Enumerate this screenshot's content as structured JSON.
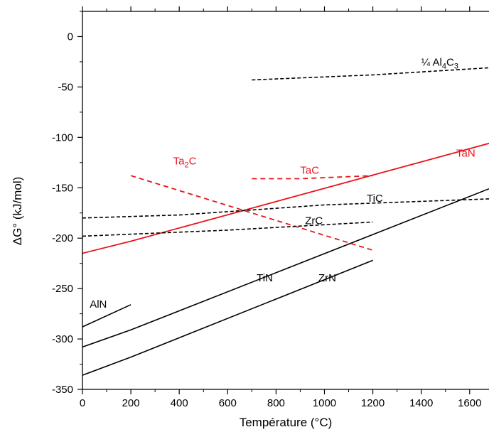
{
  "chart_data": {
    "type": "line",
    "title": "",
    "xlabel": "Température (°C)",
    "ylabel": "ΔG° (kJ/mol)",
    "xlim": [
      0,
      1680
    ],
    "ylim": [
      -350,
      25
    ],
    "x_ticks": [
      0,
      200,
      400,
      600,
      800,
      1000,
      1200,
      1400,
      1600
    ],
    "y_ticks": [
      0,
      -50,
      -100,
      -150,
      -200,
      -250,
      -300,
      -350
    ],
    "grid": false,
    "legend": "none",
    "colors": {
      "red": "#e8141b",
      "black": "#000000"
    },
    "series": [
      {
        "label": "AlN",
        "color": "#000000",
        "dash": "solid",
        "label_at": [
          30,
          -269
        ],
        "label_parts": [
          {
            "t": "AlN"
          }
        ],
        "points": [
          [
            0,
            -288
          ],
          [
            200,
            -266
          ]
        ]
      },
      {
        "label": "TiN",
        "color": "#000000",
        "dash": "solid",
        "label_at": [
          720,
          -243
        ],
        "label_parts": [
          {
            "t": "TiN"
          }
        ],
        "points": [
          [
            0,
            -308
          ],
          [
            200,
            -291
          ],
          [
            1680,
            -151
          ]
        ]
      },
      {
        "label": "ZrN",
        "color": "#000000",
        "dash": "solid",
        "label_at": [
          975,
          -243
        ],
        "label_parts": [
          {
            "t": "ZrN"
          }
        ],
        "points": [
          [
            0,
            -336
          ],
          [
            200,
            -318
          ],
          [
            1200,
            -222
          ]
        ]
      },
      {
        "label": "TaN",
        "color": "#e8141b",
        "dash": "solid",
        "label_at": [
          1545,
          -119
        ],
        "label_parts": [
          {
            "t": "TaN"
          }
        ],
        "points": [
          [
            0,
            -215
          ],
          [
            200,
            -203
          ],
          [
            1680,
            -106
          ]
        ]
      },
      {
        "label": "TaC",
        "color": "#e8141b",
        "dash": "dashed",
        "label_at": [
          900,
          -136
        ],
        "label_parts": [
          {
            "t": "TaC"
          }
        ],
        "points": [
          [
            700,
            -141
          ],
          [
            900,
            -141
          ],
          [
            1200,
            -138
          ]
        ]
      },
      {
        "label": "Ta2C",
        "color": "#e8141b",
        "dash": "dashed",
        "label_at": [
          375,
          -127
        ],
        "label_parts": [
          {
            "t": "Ta"
          },
          {
            "t": "2",
            "sub": true
          },
          {
            "t": "C"
          }
        ],
        "points": [
          [
            200,
            -138
          ],
          [
            1200,
            -212
          ]
        ]
      },
      {
        "label": "TiC",
        "color": "#000000",
        "dash": "dashed",
        "label_at": [
          1175,
          -164
        ],
        "label_parts": [
          {
            "t": "TiC"
          }
        ],
        "points": [
          [
            0,
            -180
          ],
          [
            400,
            -177
          ],
          [
            1000,
            -167
          ],
          [
            1680,
            -161
          ]
        ]
      },
      {
        "label": "ZrC",
        "color": "#000000",
        "dash": "dashed",
        "label_at": [
          920,
          -186
        ],
        "label_parts": [
          {
            "t": "ZrC"
          }
        ],
        "points": [
          [
            0,
            -198
          ],
          [
            600,
            -192
          ],
          [
            1200,
            -184
          ]
        ]
      },
      {
        "label": "¼ Al4C3",
        "color": "#000000",
        "dash": "dashed",
        "label_at": [
          1400,
          -29
        ],
        "label_parts": [
          {
            "t": "¼ Al"
          },
          {
            "t": "4",
            "sub": true
          },
          {
            "t": "C"
          },
          {
            "t": "3",
            "sub": true
          }
        ],
        "points": [
          [
            700,
            -43
          ],
          [
            1200,
            -38
          ],
          [
            1680,
            -31
          ]
        ]
      }
    ]
  }
}
